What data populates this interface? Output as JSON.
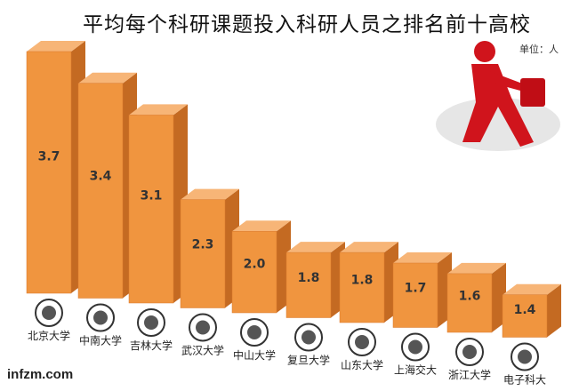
{
  "chart_data": {
    "type": "bar",
    "title": "平均每个科研课题投入科研人员之排名前十高校",
    "unit_label": "单位：人",
    "categories": [
      "北京大学",
      "中南大学",
      "吉林大学",
      "武汉大学",
      "中山大学",
      "复旦大学",
      "山东大学",
      "上海交大",
      "浙江大学",
      "电子科大"
    ],
    "values": [
      3.7,
      3.4,
      3.1,
      2.3,
      2.0,
      1.8,
      1.8,
      1.7,
      1.6,
      1.4
    ],
    "value_labels": [
      "3.7",
      "3.4",
      "3.1",
      "2.3",
      "2.0",
      "1.8",
      "1.8",
      "1.7",
      "1.6",
      "1.4"
    ],
    "bar_style": "3d",
    "grid": false,
    "legend": "none"
  },
  "colors": {
    "bar_front": "#f0953f",
    "bar_side": "#c46a22",
    "bar_top": "#f7b577",
    "figure": "#d0141c"
  },
  "source": "infzm.com"
}
